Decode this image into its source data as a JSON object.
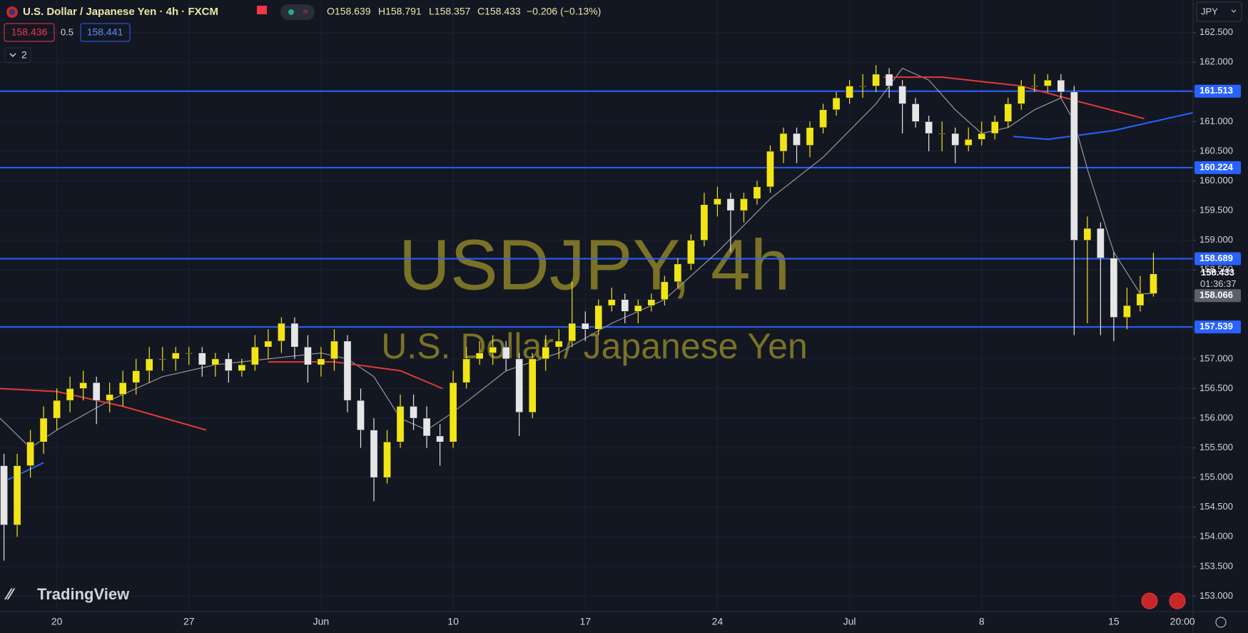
{
  "header": {
    "title": "U.S. Dollar / Japanese Yen · 4h · FXCM",
    "ohlc": [
      "O158.639",
      "H158.791",
      "L158.357",
      "C158.433"
    ],
    "change": "−0.206 (−0.13%)",
    "sell": "158.436",
    "spread": "0.5",
    "buy": "158.441",
    "indicators": "2",
    "currency": "JPY",
    "brand": "TradingView",
    "countdown": "01:36:37"
  },
  "chart_data": {
    "type": "candlestick",
    "watermark": "USDJPY, 4h",
    "subtitle": "U.S. Dollar / Japanese Yen",
    "x": [
      -4,
      -3,
      -2,
      -1,
      0,
      1,
      2,
      3,
      4,
      5,
      6,
      7,
      8,
      9,
      10,
      11,
      12,
      13,
      14,
      15,
      16,
      17,
      18,
      19,
      20,
      21,
      22,
      23,
      24,
      25,
      26,
      27,
      28,
      29,
      30,
      31,
      32,
      33,
      34,
      35,
      36,
      37,
      38,
      39,
      40,
      41,
      42,
      43,
      44,
      45,
      46,
      47,
      48,
      49,
      50,
      51,
      52,
      53,
      54,
      55,
      56,
      57,
      58,
      59,
      60,
      61,
      62,
      63,
      64,
      65,
      66,
      67,
      68,
      69,
      70,
      71,
      72,
      73,
      74,
      75,
      76,
      77,
      78,
      79,
      80,
      81,
      82,
      83
    ],
    "open": [
      155.2,
      154.2,
      155.2,
      155.6,
      156.0,
      156.3,
      156.5,
      156.6,
      156.3,
      156.4,
      156.6,
      156.8,
      157.0,
      157.0,
      157.1,
      157.1,
      156.9,
      157.0,
      156.8,
      156.9,
      157.2,
      157.3,
      157.6,
      157.2,
      156.9,
      157.0,
      157.3,
      156.3,
      155.8,
      155.0,
      155.6,
      156.2,
      156.0,
      155.7,
      155.6,
      156.6,
      157.0,
      157.1,
      157.2,
      157.0,
      156.1,
      157.0,
      157.2,
      157.3,
      157.6,
      157.5,
      157.9,
      158.0,
      157.8,
      157.9,
      158.0,
      158.3,
      158.6,
      159.0,
      159.6,
      159.7,
      159.5,
      159.7,
      159.9,
      160.5,
      160.8,
      160.6,
      160.9,
      161.2,
      161.4,
      161.6,
      161.6,
      161.8,
      161.6,
      161.3,
      161.0,
      160.8,
      160.8,
      160.6,
      160.7,
      160.8,
      161.0,
      161.3,
      161.6,
      161.6,
      161.7,
      161.5,
      159.0,
      159.2,
      158.7,
      157.7,
      157.9,
      158.1
    ],
    "high": [
      155.4,
      155.4,
      155.8,
      156.2,
      156.5,
      156.7,
      156.8,
      156.7,
      156.6,
      156.8,
      157.0,
      157.2,
      157.2,
      157.2,
      157.2,
      157.2,
      157.1,
      157.1,
      157.0,
      157.4,
      157.5,
      157.7,
      157.7,
      157.4,
      157.2,
      157.5,
      157.4,
      156.5,
      156.0,
      155.8,
      156.4,
      156.4,
      156.2,
      155.9,
      156.8,
      157.2,
      157.3,
      157.4,
      157.3,
      157.1,
      157.1,
      157.4,
      157.5,
      158.3,
      157.8,
      158.0,
      158.2,
      158.1,
      158.0,
      158.1,
      158.4,
      158.7,
      159.1,
      159.8,
      159.9,
      159.8,
      159.8,
      160.0,
      160.6,
      160.9,
      160.9,
      161.0,
      161.3,
      161.5,
      161.7,
      161.8,
      161.95,
      161.9,
      161.7,
      161.4,
      161.1,
      161.0,
      160.9,
      160.9,
      161.0,
      161.1,
      161.4,
      161.7,
      161.8,
      161.8,
      161.8,
      161.6,
      159.4,
      159.3,
      158.8,
      158.2,
      158.4,
      158.79
    ],
    "low": [
      153.6,
      154.0,
      155.0,
      155.4,
      155.8,
      156.1,
      156.3,
      155.9,
      156.1,
      156.2,
      156.4,
      156.6,
      156.8,
      156.8,
      156.9,
      156.7,
      156.7,
      156.6,
      156.7,
      156.8,
      157.0,
      157.1,
      157.0,
      156.6,
      156.7,
      156.8,
      156.1,
      155.5,
      154.6,
      154.9,
      155.5,
      155.8,
      155.5,
      155.2,
      155.5,
      156.5,
      156.9,
      156.9,
      156.8,
      155.7,
      156.0,
      156.8,
      157.0,
      157.2,
      157.3,
      157.4,
      157.8,
      157.6,
      157.6,
      157.8,
      157.9,
      158.2,
      158.5,
      158.9,
      159.4,
      158.8,
      159.3,
      159.6,
      159.8,
      160.3,
      160.3,
      160.4,
      160.8,
      161.1,
      161.3,
      161.4,
      161.5,
      161.4,
      160.8,
      160.9,
      160.5,
      160.5,
      160.3,
      160.5,
      160.6,
      160.7,
      160.9,
      161.2,
      161.5,
      161.5,
      161.4,
      157.4,
      157.6,
      157.4,
      157.3,
      157.5,
      157.8,
      158.05
    ],
    "close": [
      154.2,
      155.2,
      155.6,
      156.0,
      156.3,
      156.5,
      156.6,
      156.3,
      156.4,
      156.6,
      156.8,
      157.0,
      157.0,
      157.1,
      157.1,
      156.9,
      157.0,
      156.8,
      156.9,
      157.2,
      157.3,
      157.6,
      157.2,
      156.9,
      157.0,
      157.3,
      156.3,
      155.8,
      155.0,
      155.6,
      156.2,
      156.0,
      155.7,
      155.6,
      156.6,
      157.0,
      157.1,
      157.2,
      157.0,
      156.1,
      157.0,
      157.2,
      157.3,
      157.6,
      157.5,
      157.9,
      158.0,
      157.8,
      157.9,
      158.0,
      158.3,
      158.6,
      159.0,
      159.6,
      159.7,
      159.5,
      159.7,
      159.9,
      160.5,
      160.8,
      160.6,
      160.9,
      161.2,
      161.4,
      161.6,
      161.6,
      161.8,
      161.6,
      161.3,
      161.0,
      160.8,
      160.8,
      160.6,
      160.7,
      160.8,
      161.0,
      161.3,
      161.6,
      161.6,
      161.7,
      161.5,
      159.0,
      159.2,
      158.7,
      157.7,
      157.9,
      158.1,
      158.433
    ],
    "up_color": "#f2e515",
    "down_color": "#e6e6e6",
    "xlim": [
      -4.3,
      86
    ],
    "xticks": [
      {
        "value": 0,
        "label": "20"
      },
      {
        "value": 10,
        "label": "27"
      },
      {
        "value": 20,
        "label": "Jun"
      },
      {
        "value": 30,
        "label": "10"
      },
      {
        "value": 40,
        "label": "17"
      },
      {
        "value": 50,
        "label": "24"
      },
      {
        "value": 60,
        "label": "Jul"
      },
      {
        "value": 70,
        "label": "8"
      },
      {
        "value": 80,
        "label": "15"
      },
      {
        "value": 85.2,
        "label": "20:00"
      }
    ],
    "ylim": [
      152.74,
      163.05
    ],
    "yticks": [
      {
        "value": 153,
        "label": "153.000"
      },
      {
        "value": 153.5,
        "label": "153.500"
      },
      {
        "value": 154,
        "label": "154.000"
      },
      {
        "value": 154.5,
        "label": "154.500"
      },
      {
        "value": 155,
        "label": "155.000"
      },
      {
        "value": 155.5,
        "label": "155.500"
      },
      {
        "value": 156,
        "label": "156.000"
      },
      {
        "value": 156.5,
        "label": "156.500"
      },
      {
        "value": 157,
        "label": "157.000"
      },
      {
        "value": 157.5,
        "label": "157.500"
      },
      {
        "value": 158,
        "label": "158.000"
      },
      {
        "value": 158.5,
        "label": "158.500"
      },
      {
        "value": 159,
        "label": "159.000"
      },
      {
        "value": 159.5,
        "label": "159.500"
      },
      {
        "value": 160,
        "label": "160.000"
      },
      {
        "value": 160.5,
        "label": "160.500"
      },
      {
        "value": 161,
        "label": "161.000"
      },
      {
        "value": 161.5,
        "label": "161.500"
      },
      {
        "value": 162,
        "label": "162.000"
      },
      {
        "value": 162.5,
        "label": "162.500"
      }
    ],
    "grid": true,
    "levels": {
      "color": "#2962ff",
      "values": [
        161.513,
        160.224,
        158.689,
        157.539
      ]
    },
    "last_price": 158.433,
    "marker_price": 158.066,
    "overlays": [
      {
        "color": "#9598a1",
        "x": [
          -4.3,
          -2,
          0,
          4,
          8,
          12,
          16,
          20,
          22,
          24,
          26,
          28,
          30,
          34,
          38,
          42,
          46,
          50,
          54,
          58,
          62,
          64,
          66,
          68,
          70,
          72,
          74,
          76,
          77,
          78,
          80,
          82,
          83
        ],
        "values": [
          156.0,
          155.5,
          155.8,
          156.3,
          156.7,
          156.9,
          157.0,
          157.1,
          157.0,
          156.7,
          156.0,
          155.8,
          156.1,
          156.8,
          157.1,
          157.6,
          158.0,
          158.8,
          159.7,
          160.4,
          161.3,
          161.9,
          161.7,
          161.2,
          160.8,
          160.9,
          161.2,
          161.4,
          161.0,
          160.2,
          158.8,
          158.1,
          158.1
        ]
      },
      {
        "color": "#e53935",
        "x": [
          -4.3,
          0,
          5,
          11.3
        ],
        "values": [
          156.5,
          156.45,
          156.2,
          155.8
        ]
      },
      {
        "color": "#e53935",
        "x": [
          16,
          21,
          26,
          29.2
        ],
        "values": [
          156.95,
          156.95,
          156.8,
          156.5
        ]
      },
      {
        "color": "#e53935",
        "x": [
          62.6,
          67,
          73,
          78,
          82.3
        ],
        "values": [
          161.75,
          161.75,
          161.6,
          161.3,
          161.05
        ]
      },
      {
        "color": "#2962ff",
        "x": [
          -4.3,
          -1
        ],
        "values": [
          154.9,
          155.25
        ]
      },
      {
        "color": "#2962ff",
        "x": [
          72.4,
          75,
          80,
          86
        ],
        "values": [
          160.75,
          160.7,
          160.85,
          161.15
        ]
      }
    ]
  }
}
